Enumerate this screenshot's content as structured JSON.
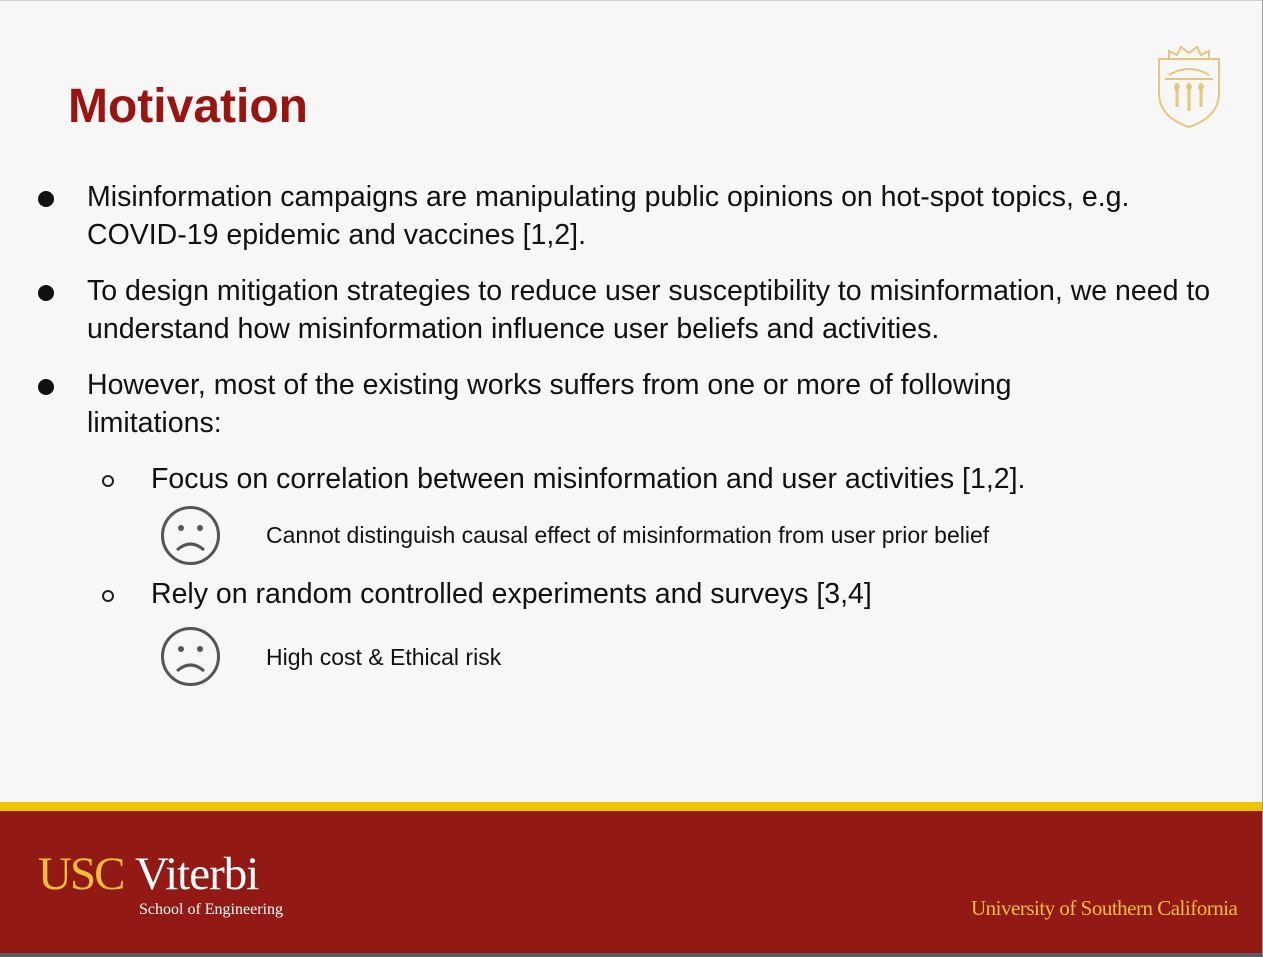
{
  "slide": {
    "title": "Motivation",
    "bullets": [
      {
        "text": "Misinformation campaigns are manipulating public opinions on hot-spot topics, e.g. COVID-19 epidemic and vaccines [1,2]."
      },
      {
        "text": "To design mitigation strategies to reduce user susceptibility to misinformation, we need to understand how misinformation influence user beliefs and activities."
      },
      {
        "text": "However, most of the existing works suffers from one or more of following limitations:",
        "sub_items": [
          {
            "text": "Focus on correlation between misinformation and user activities [1,2].",
            "icon": "sad-face-icon",
            "note": "Cannot distinguish causal effect of misinformation from user prior belief"
          },
          {
            "text": "Rely on random controlled experiments and surveys [3,4]",
            "icon": "sad-face-icon",
            "note": "High cost & Ethical risk"
          }
        ]
      }
    ]
  },
  "branding": {
    "logo_usc": "USC",
    "logo_viterbi": "Viterbi",
    "logo_school": "School of Engineering",
    "university": "University of Southern California",
    "seal_icon": "usc-seal-icon"
  },
  "colors": {
    "title": "#99150f",
    "footer_red": "#931a14",
    "footer_gold": "#f0c300",
    "logo_gold": "#f1be3c",
    "seal_gold": "#e6c77a"
  }
}
